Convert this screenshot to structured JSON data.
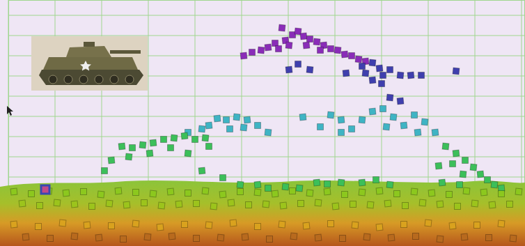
{
  "chart_data": {
    "type": "scatter",
    "grid": true,
    "tick_labels": false,
    "xlim": [
      0,
      742
    ],
    "ylim": [
      0,
      353
    ],
    "xticks": [
      0,
      67,
      134,
      201,
      268,
      335,
      402,
      469,
      536,
      603,
      670,
      737
    ],
    "yticks": [
      12,
      41,
      70,
      99,
      128,
      157,
      186,
      215,
      244,
      273,
      302,
      331
    ],
    "series": [
      {
        "color": "#8a2cb8",
        "marker": "square",
        "x": [
          338,
          350,
          363,
          373,
          383,
          393,
          398,
          408,
          416,
          424,
          433,
          443,
          453,
          463,
          473,
          483,
          493,
          503,
          513,
          388,
          403,
          428,
          448
        ],
        "values": [
          273,
          278,
          281,
          285,
          291,
          313,
          295,
          303,
          308,
          301,
          297,
          293,
          288,
          283,
          281,
          275,
          273,
          268,
          265,
          283,
          288,
          288,
          281
        ]
      },
      {
        "color": "#3f3fae",
        "marker": "square",
        "x": [
          403,
          416,
          433,
          485,
          508,
          523,
          533,
          548,
          563,
          578,
          593,
          643,
          523,
          536,
          548,
          563,
          538,
          513
        ],
        "values": [
          253,
          261,
          253,
          248,
          258,
          263,
          255,
          253,
          245,
          245,
          245,
          251,
          238,
          233,
          213,
          208,
          245,
          248
        ]
      },
      {
        "color": "#3fb4c4",
        "marker": "square",
        "x": [
          300,
          313,
          328,
          343,
          358,
          373,
          288,
          318,
          338,
          423,
          448,
          463,
          478,
          493,
          508,
          523,
          538,
          553,
          568,
          583,
          598,
          613,
          478,
          543,
          588,
          258,
          278
        ],
        "values": [
          183,
          181,
          185,
          181,
          173,
          163,
          173,
          168,
          170,
          185,
          171,
          188,
          181,
          168,
          181,
          193,
          197,
          185,
          173,
          188,
          178,
          163,
          163,
          171,
          163,
          163,
          168
        ]
      },
      {
        "color": "#3cbf5a",
        "marker": "square",
        "x": [
          163,
          178,
          193,
          208,
          223,
          238,
          253,
          268,
          283,
          148,
          138,
          173,
          203,
          233,
          258,
          278,
          288,
          628,
          643,
          656,
          668,
          678,
          688,
          698,
          708,
          638,
          653,
          618,
          308,
          333,
          358,
          373,
          398,
          443,
          458,
          478,
          508,
          528,
          548,
          623,
          648,
          418
        ],
        "values": [
          143,
          141,
          145,
          148,
          153,
          155,
          158,
          153,
          155,
          123,
          108,
          128,
          133,
          141,
          133,
          108,
          143,
          143,
          133,
          123,
          113,
          103,
          95,
          88,
          83,
          118,
          103,
          115,
          98,
          88,
          88,
          83,
          85,
          91,
          89,
          91,
          91,
          95,
          88,
          91,
          88,
          83
        ]
      },
      {
        "color": "#8cc81e",
        "marker": "square",
        "x": [
          8,
          33,
          58,
          83,
          108,
          133,
          158,
          183,
          208,
          233,
          258,
          283,
          308,
          333,
          358,
          383,
          408,
          433,
          458,
          483,
          508,
          533,
          558,
          583,
          608,
          633,
          658,
          683,
          708,
          733
        ],
        "values": [
          78,
          75,
          79,
          76,
          78,
          74,
          79,
          77,
          75,
          78,
          76,
          79,
          74,
          78,
          77,
          75,
          79,
          76,
          78,
          74,
          77,
          79,
          75,
          78,
          76,
          74,
          79,
          77,
          75,
          78
        ]
      },
      {
        "color": "#9cc41c",
        "marker": "square",
        "x": [
          20,
          45,
          70,
          95,
          120,
          145,
          170,
          195,
          220,
          245,
          270,
          295,
          320,
          345,
          370,
          395,
          420,
          445,
          470,
          495,
          520,
          545,
          570,
          595,
          620,
          645,
          670,
          695,
          720
        ],
        "values": [
          61,
          58,
          62,
          60,
          57,
          61,
          59,
          62,
          58,
          60,
          61,
          57,
          62,
          59,
          60,
          58,
          61,
          62,
          57,
          60,
          59,
          61,
          58,
          62,
          60,
          57,
          61,
          59,
          60
        ]
      },
      {
        "color": "#d9a21e",
        "marker": "square",
        "x": [
          8,
          43,
          78,
          113,
          148,
          183,
          218,
          253,
          288,
          323,
          358,
          393,
          428,
          463,
          498,
          533,
          568,
          603,
          638,
          673,
          708
        ],
        "values": [
          31,
          28,
          33,
          30,
          29,
          32,
          27,
          31,
          30,
          33,
          28,
          31,
          29,
          32,
          30,
          27,
          31,
          33,
          29,
          30,
          32
        ]
      },
      {
        "color": "#b86a1e",
        "marker": "square",
        "x": [
          25,
          60,
          95,
          130,
          165,
          200,
          235,
          270,
          305,
          340,
          375,
          410,
          445,
          480,
          515,
          550,
          585,
          620,
          655,
          690,
          725
        ],
        "values": [
          13,
          11,
          14,
          12,
          10,
          13,
          14,
          11,
          12,
          13,
          10,
          14,
          12,
          11,
          13,
          12,
          14,
          10,
          13,
          12,
          11
        ]
      },
      {
        "color": "#3848b0",
        "marker": "square-outline",
        "x": [
          53
        ],
        "values": [
          81
        ]
      }
    ]
  }
}
